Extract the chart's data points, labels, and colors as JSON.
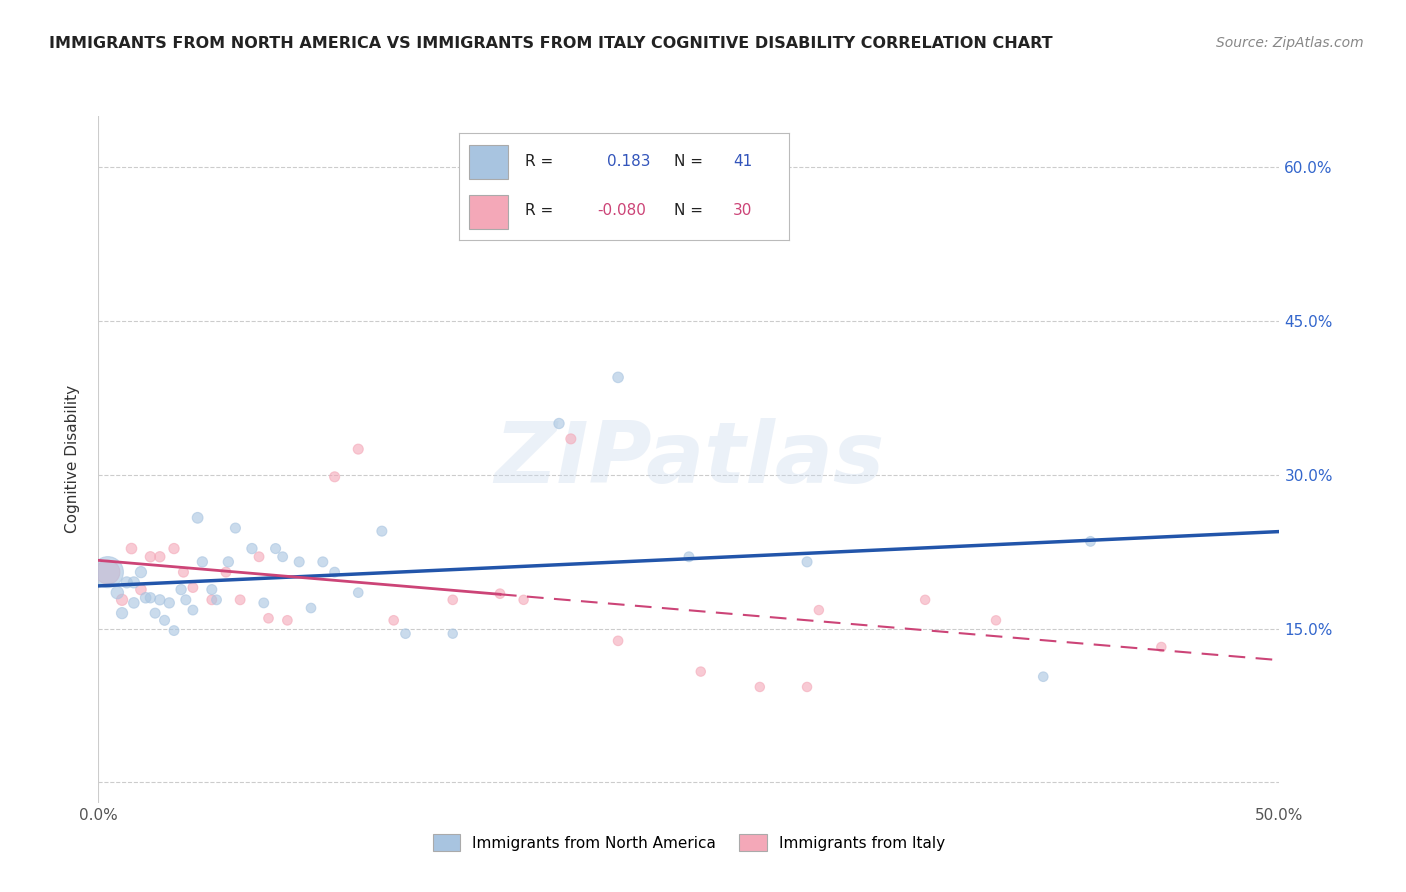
{
  "title": "IMMIGRANTS FROM NORTH AMERICA VS IMMIGRANTS FROM ITALY COGNITIVE DISABILITY CORRELATION CHART",
  "source": "Source: ZipAtlas.com",
  "ylabel_label": "Cognitive Disability",
  "xlim": [
    0.0,
    0.5
  ],
  "ylim": [
    -0.02,
    0.65
  ],
  "xticks": [
    0.0,
    0.1,
    0.2,
    0.3,
    0.4,
    0.5
  ],
  "yticks": [
    0.0,
    0.15,
    0.3,
    0.45,
    0.6
  ],
  "R_blue": 0.183,
  "N_blue": 41,
  "R_pink": -0.08,
  "N_pink": 30,
  "blue_color": "#A8C4E0",
  "pink_color": "#F4A8B8",
  "blue_line_color": "#2255AA",
  "pink_line_color": "#CC4477",
  "background_color": "#FFFFFF",
  "north_america_x": [
    0.004,
    0.008,
    0.01,
    0.012,
    0.015,
    0.015,
    0.018,
    0.02,
    0.022,
    0.024,
    0.026,
    0.028,
    0.03,
    0.032,
    0.035,
    0.037,
    0.04,
    0.042,
    0.044,
    0.048,
    0.05,
    0.055,
    0.058,
    0.065,
    0.07,
    0.075,
    0.078,
    0.085,
    0.09,
    0.095,
    0.1,
    0.11,
    0.12,
    0.13,
    0.15,
    0.195,
    0.22,
    0.25,
    0.3,
    0.4,
    0.42
  ],
  "north_america_y": [
    0.205,
    0.185,
    0.165,
    0.195,
    0.195,
    0.175,
    0.205,
    0.18,
    0.18,
    0.165,
    0.178,
    0.158,
    0.175,
    0.148,
    0.188,
    0.178,
    0.168,
    0.258,
    0.215,
    0.188,
    0.178,
    0.215,
    0.248,
    0.228,
    0.175,
    0.228,
    0.22,
    0.215,
    0.17,
    0.215,
    0.205,
    0.185,
    0.245,
    0.145,
    0.145,
    0.35,
    0.395,
    0.22,
    0.215,
    0.103,
    0.235
  ],
  "north_america_size": [
    500,
    80,
    65,
    65,
    65,
    58,
    65,
    58,
    55,
    52,
    55,
    52,
    55,
    50,
    55,
    52,
    50,
    60,
    55,
    52,
    50,
    55,
    52,
    55,
    50,
    52,
    50,
    52,
    48,
    52,
    50,
    48,
    52,
    48,
    46,
    55,
    58,
    50,
    52,
    48,
    50
  ],
  "italy_x": [
    0.004,
    0.01,
    0.014,
    0.018,
    0.022,
    0.026,
    0.032,
    0.036,
    0.04,
    0.048,
    0.054,
    0.06,
    0.068,
    0.072,
    0.08,
    0.1,
    0.11,
    0.125,
    0.15,
    0.17,
    0.18,
    0.2,
    0.22,
    0.255,
    0.28,
    0.3,
    0.305,
    0.35,
    0.38,
    0.45
  ],
  "italy_y": [
    0.205,
    0.178,
    0.228,
    0.188,
    0.22,
    0.22,
    0.228,
    0.205,
    0.19,
    0.178,
    0.205,
    0.178,
    0.22,
    0.16,
    0.158,
    0.298,
    0.325,
    0.158,
    0.178,
    0.184,
    0.178,
    0.335,
    0.138,
    0.108,
    0.093,
    0.093,
    0.168,
    0.178,
    0.158,
    0.132
  ],
  "italy_size": [
    300,
    65,
    58,
    58,
    55,
    55,
    55,
    52,
    50,
    50,
    50,
    50,
    50,
    48,
    48,
    52,
    52,
    48,
    48,
    48,
    46,
    52,
    48,
    46,
    46,
    46,
    46,
    46,
    46,
    46
  ]
}
